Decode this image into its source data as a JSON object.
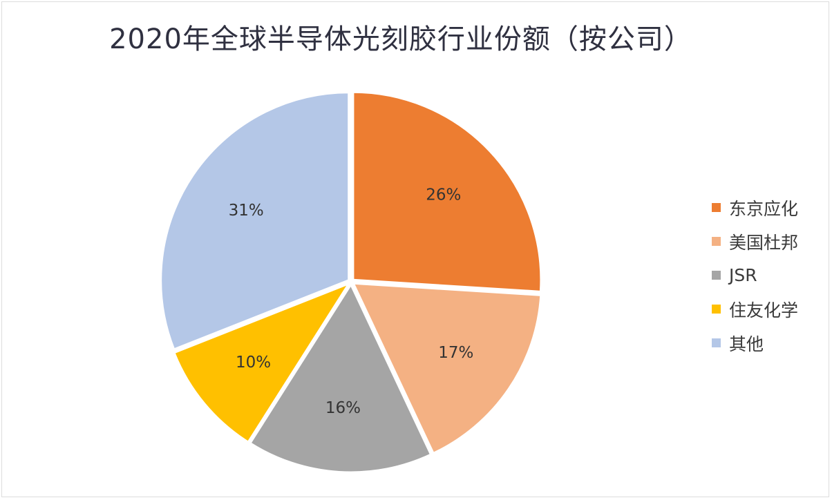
{
  "chart_data": {
    "type": "pie",
    "title": "2020年全球半导体光刻胶行业份额（按公司）",
    "slices": [
      {
        "label": "东京应化",
        "value": 26,
        "value_label": "26%",
        "color": "#ED7D31"
      },
      {
        "label": "美国杜邦",
        "value": 17,
        "value_label": "17%",
        "color": "#F4B183"
      },
      {
        "label": "JSR",
        "value": 16,
        "value_label": "16%",
        "color": "#A5A5A5"
      },
      {
        "label": "住友化学",
        "value": 10,
        "value_label": "10%",
        "color": "#FFC000"
      },
      {
        "label": "其他",
        "value": 31,
        "value_label": "31%",
        "color": "#B4C7E7"
      }
    ],
    "start_angle": "12 o'clock",
    "direction": "clockwise",
    "legend_position": "right"
  }
}
